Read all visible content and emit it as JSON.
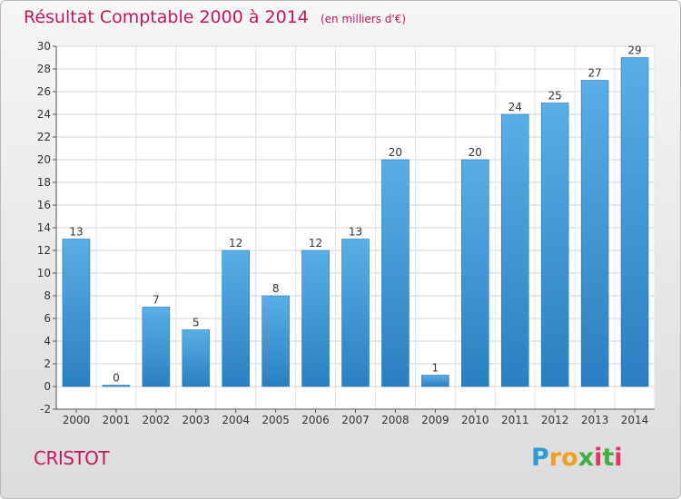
{
  "chart_data": {
    "type": "bar",
    "title": "Résultat Comptable 2000 à 2014",
    "subtitle": "(en milliers d'€)",
    "categories": [
      "2000",
      "2001",
      "2002",
      "2003",
      "2004",
      "2005",
      "2006",
      "2007",
      "2008",
      "2009",
      "2010",
      "2011",
      "2012",
      "2013",
      "2014"
    ],
    "values": [
      13,
      0,
      7,
      5,
      12,
      8,
      12,
      13,
      20,
      1,
      20,
      24,
      25,
      27,
      29
    ],
    "ylim": [
      -2,
      30
    ],
    "yticks": [
      -2,
      0,
      2,
      4,
      6,
      8,
      10,
      12,
      14,
      16,
      18,
      20,
      22,
      24,
      26,
      28,
      30
    ],
    "grid": true,
    "bar_color": "#3d94d6",
    "title_color": "#c2185b"
  },
  "footer": {
    "commune": "CRISTOT"
  },
  "logo": {
    "letters": [
      "P",
      "r",
      "o",
      "x",
      "i",
      "t",
      "i"
    ],
    "colors": [
      "#2e9bd6",
      "#f0a01e",
      "#f0a01e",
      "#3cb043",
      "#e2336b",
      "#3cb043",
      "#e2336b"
    ]
  }
}
